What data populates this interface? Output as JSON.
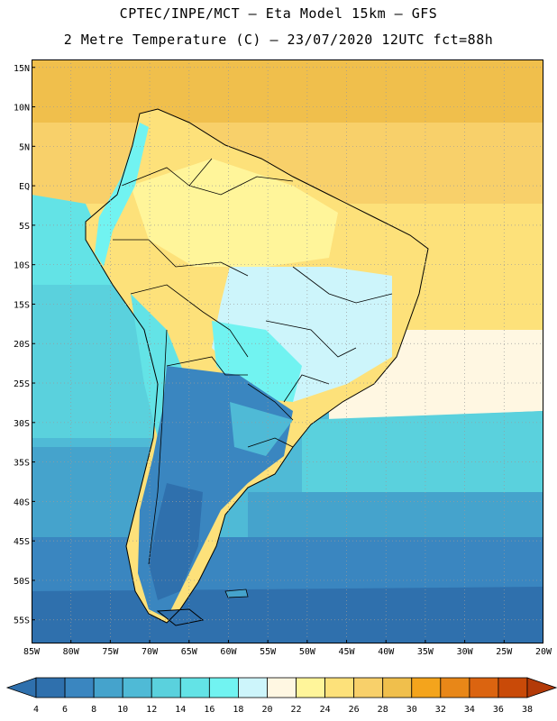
{
  "title": {
    "line1": "CPTEC/INPE/MCT –  Eta Model 15km – GFS",
    "line2": "2 Metre Temperature (C) – 23/07/2020 12UTC fct=88h"
  },
  "map": {
    "lon_range": [
      -85,
      -20
    ],
    "lat_range": [
      -58,
      16
    ],
    "lon_labels": [
      "85W",
      "80W",
      "75W",
      "70W",
      "65W",
      "60W",
      "55W",
      "50W",
      "45W",
      "40W",
      "35W",
      "30W",
      "25W",
      "20W"
    ],
    "lat_labels": [
      "15N",
      "10N",
      "5N",
      "EQ",
      "5S",
      "10S",
      "15S",
      "20S",
      "25S",
      "30S",
      "35S",
      "40S",
      "45S",
      "50S",
      "55S"
    ],
    "gridlines": "dotted",
    "field": "2 metre temperature"
  },
  "colorbar": {
    "levels": [
      "4",
      "6",
      "8",
      "10",
      "12",
      "14",
      "16",
      "18",
      "20",
      "22",
      "24",
      "26",
      "28",
      "30",
      "32",
      "34",
      "36",
      "38"
    ],
    "colors": [
      "#2f70ad",
      "#3a86c0",
      "#45a3cc",
      "#4fbad6",
      "#5ad1dd",
      "#63e3e6",
      "#71f3f1",
      "#cdf5fb",
      "#fff7e2",
      "#fff59a",
      "#fde17a",
      "#f8d06a",
      "#f0bf4c",
      "#f4a41c",
      "#e88718",
      "#db6410",
      "#c94a08"
    ],
    "under_color": "#2f70ad",
    "over_color": "#b33a08"
  }
}
